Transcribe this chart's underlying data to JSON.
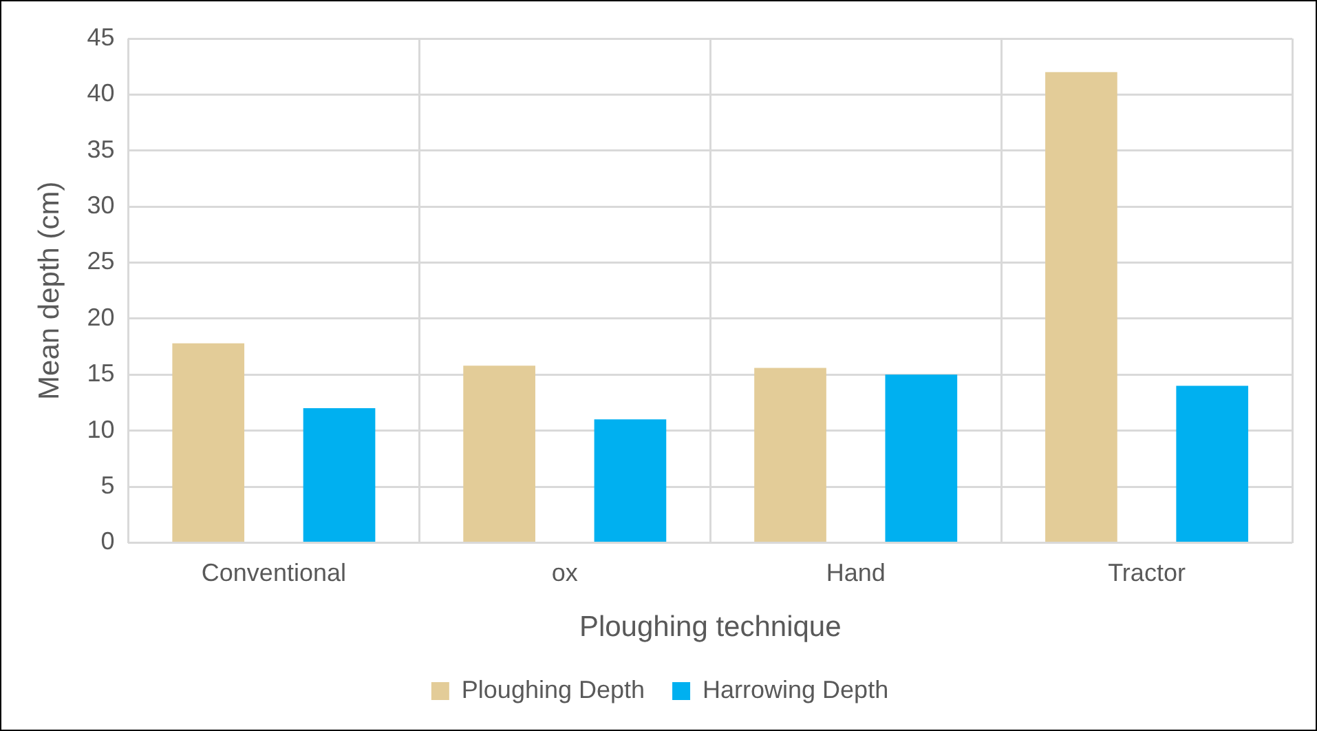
{
  "chart_data": {
    "type": "bar",
    "xlabel": "Ploughing technique",
    "ylabel": "Mean depth (cm)",
    "categories": [
      "Conventional",
      "ox",
      "Hand",
      "Tractor"
    ],
    "series": [
      {
        "name": "Ploughing Depth",
        "color": "#e3cc98",
        "values": [
          17.8,
          15.8,
          15.6,
          42
        ]
      },
      {
        "name": "Harrowing Depth",
        "color": "#00b0f0",
        "values": [
          12,
          11,
          15,
          14
        ]
      }
    ],
    "ylim": [
      0,
      45
    ],
    "yticks": [
      0,
      5,
      10,
      15,
      20,
      25,
      30,
      35,
      40,
      45
    ],
    "grid": true,
    "legend": "bottom"
  }
}
